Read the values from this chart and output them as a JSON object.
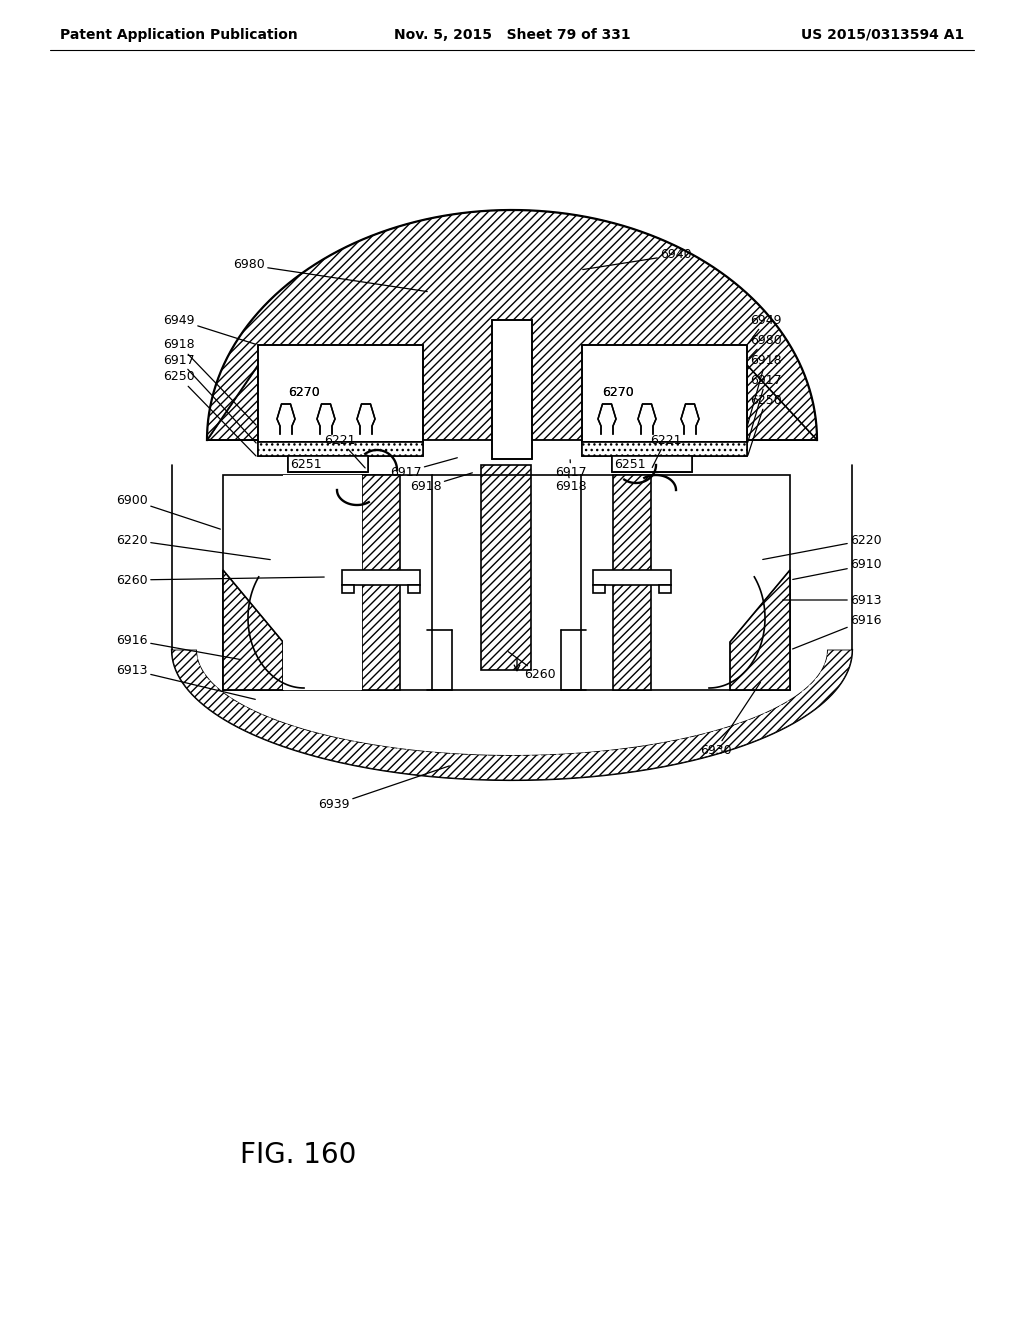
{
  "background_color": "#ffffff",
  "header_left": "Patent Application Publication",
  "header_center": "Nov. 5, 2015   Sheet 79 of 331",
  "header_right": "US 2015/0313594 A1",
  "figure_label": "FIG. 160",
  "header_fontsize": 10,
  "label_fontsize": 9,
  "fig_label_fontsize": 20,
  "line_color": "#000000",
  "line_width": 1.2
}
